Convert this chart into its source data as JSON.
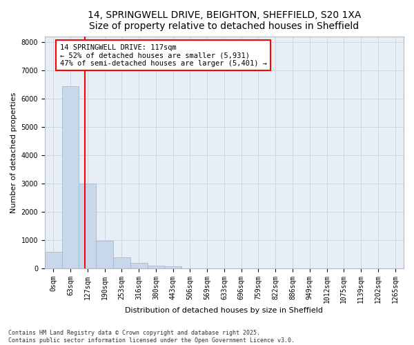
{
  "title_line1": "14, SPRINGWELL DRIVE, BEIGHTON, SHEFFIELD, S20 1XA",
  "title_line2": "Size of property relative to detached houses in Sheffield",
  "xlabel": "Distribution of detached houses by size in Sheffield",
  "ylabel": "Number of detached properties",
  "bar_labels": [
    "0sqm",
    "63sqm",
    "127sqm",
    "190sqm",
    "253sqm",
    "316sqm",
    "380sqm",
    "443sqm",
    "506sqm",
    "569sqm",
    "633sqm",
    "696sqm",
    "759sqm",
    "822sqm",
    "886sqm",
    "949sqm",
    "1012sqm",
    "1075sqm",
    "1139sqm",
    "1202sqm",
    "1265sqm"
  ],
  "bar_values": [
    570,
    6450,
    3000,
    970,
    380,
    175,
    100,
    60,
    0,
    0,
    0,
    0,
    0,
    0,
    0,
    0,
    0,
    0,
    0,
    0,
    0
  ],
  "bar_color": "#c8d8ea",
  "bar_edge_color": "#9ab4cc",
  "vline_color": "red",
  "annotation_box_text": "14 SPRINGWELL DRIVE: 117sqm\n← 52% of detached houses are smaller (5,931)\n47% of semi-detached houses are larger (5,401) →",
  "ylim": [
    0,
    8200
  ],
  "yticks": [
    0,
    1000,
    2000,
    3000,
    4000,
    5000,
    6000,
    7000,
    8000
  ],
  "grid_color": "#ccd6e4",
  "bg_color": "#e8eef6",
  "footer_line1": "Contains HM Land Registry data © Crown copyright and database right 2025.",
  "footer_line2": "Contains public sector information licensed under the Open Government Licence v3.0.",
  "title_fontsize": 10,
  "axis_label_fontsize": 8,
  "tick_fontsize": 7,
  "annotation_fontsize": 7.5,
  "ylabel_fontsize": 8
}
